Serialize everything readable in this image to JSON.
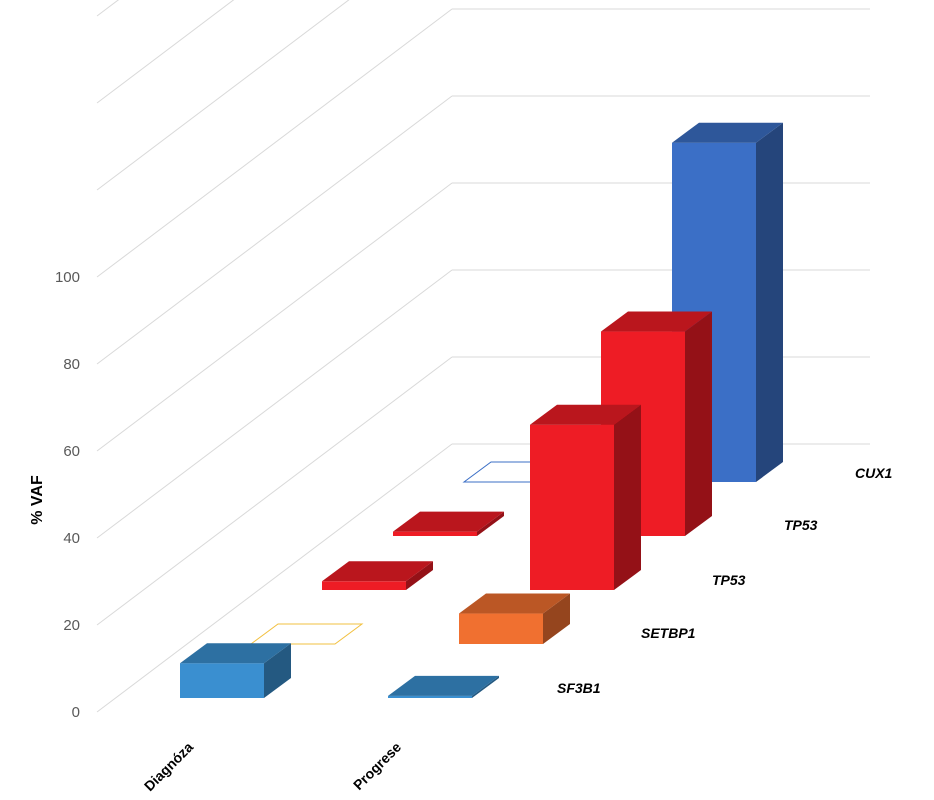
{
  "chart_data": {
    "type": "bar",
    "subtype": "3d-column",
    "title": "",
    "ylabel": "% VAF",
    "xlabel": "",
    "ylim": [
      0,
      160
    ],
    "y_ticks": [
      0,
      20,
      40,
      60,
      80,
      100
    ],
    "grid": true,
    "categories": [
      "Diagnóza",
      "Progrese"
    ],
    "series": [
      {
        "name": "SF3B1",
        "values": [
          8,
          0.5
        ],
        "color": "#3a8fd0"
      },
      {
        "name": "SETBP1",
        "values": [
          0,
          7
        ],
        "color": "#f07030"
      },
      {
        "name": "TP53",
        "values": [
          2,
          38
        ],
        "color": "#ee1c25"
      },
      {
        "name": "TP53",
        "values": [
          1,
          47
        ],
        "color": "#ee1c25"
      },
      {
        "name": "CUX1",
        "values": [
          0,
          78
        ],
        "color": "#3b6fc6"
      }
    ]
  }
}
